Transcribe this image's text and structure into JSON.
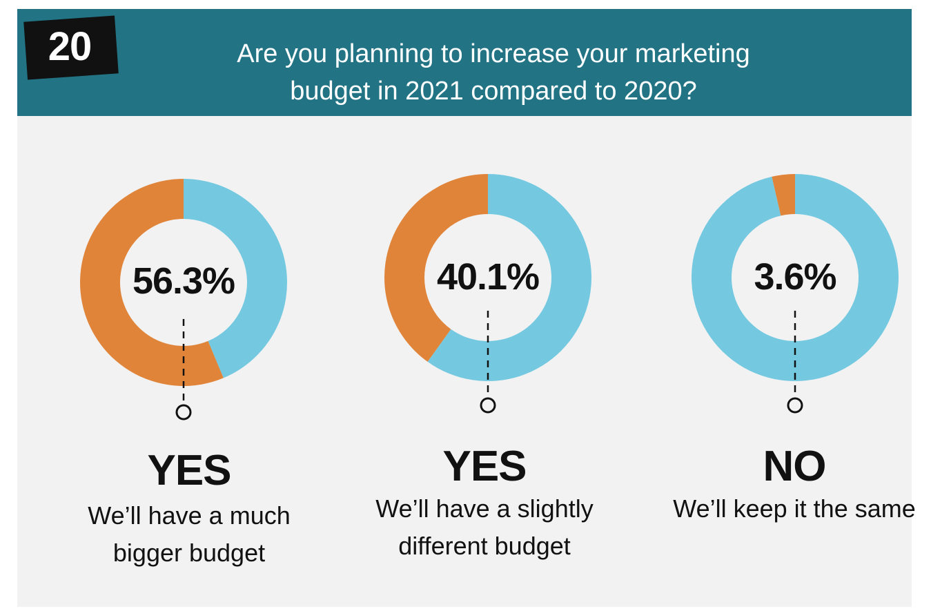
{
  "header": {
    "badge": "20",
    "title_line1": "Are you planning to increase your marketing",
    "title_line2": "budget in 2021 compared to 2020?"
  },
  "colors": {
    "header_bg": "#227485",
    "highlight": "#E0843A",
    "rest": "#74C9E1",
    "panel_bg": "#F2F2F2"
  },
  "chart_data": [
    {
      "type": "pie",
      "style": "donut",
      "value_label": "56.3%",
      "slices": [
        {
          "label": "YES We'll have a much bigger budget",
          "value": 56.3,
          "color": "#E0843A"
        },
        {
          "value": 43.7,
          "color": "#74C9E1"
        }
      ],
      "answer": "YES",
      "desc_line1": "We’ll have a much",
      "desc_line2": "bigger budget"
    },
    {
      "type": "pie",
      "style": "donut",
      "value_label": "40.1%",
      "slices": [
        {
          "label": "YES We'll have a slightly different budget",
          "value": 40.1,
          "color": "#E0843A"
        },
        {
          "value": 59.9,
          "color": "#74C9E1"
        }
      ],
      "answer": "YES",
      "desc_line1": "We’ll have a slightly",
      "desc_line2": "different budget"
    },
    {
      "type": "pie",
      "style": "donut",
      "value_label": "3.6%",
      "slices": [
        {
          "label": "NO We'll keep it the same",
          "value": 3.6,
          "color": "#E0843A"
        },
        {
          "value": 96.4,
          "color": "#74C9E1"
        }
      ],
      "answer": "NO",
      "desc_line1": "We’ll keep it the same",
      "desc_line2": ""
    }
  ]
}
